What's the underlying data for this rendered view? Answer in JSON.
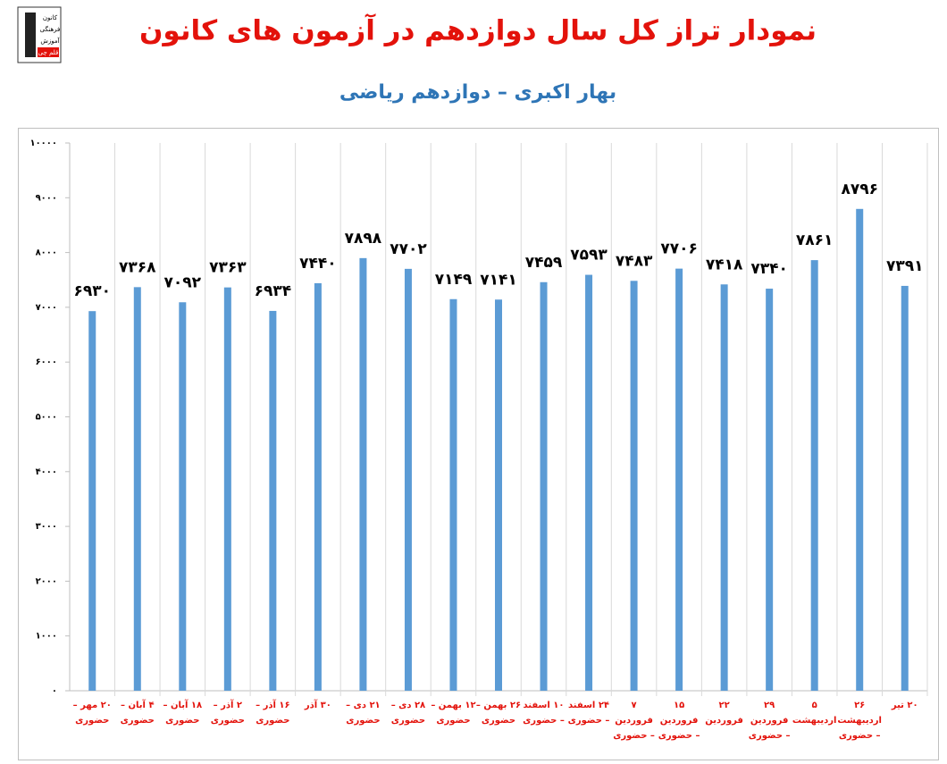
{
  "logo": {
    "lines": [
      "کانون",
      "فرهنگی",
      "آموزش",
      "قلم چی"
    ]
  },
  "chart_data": {
    "type": "bar",
    "title": "نمودار تراز کل سال دوازدهم در آزمون های کانون",
    "subtitle": "بهار اکبری – دوازدهم ریاضی",
    "categories": [
      "۲۰ مهر – حضوری",
      "۴ آبان – حضوری",
      "۱۸ آبان – حضوری",
      "۲ آذر – حضوری",
      "۱۶ آذر – حضوری",
      "۳۰ آذر",
      "۲۱ دی – حضوری",
      "۲۸ دی – حضوری",
      "۱۲ بهمن – حضوری",
      "۲۶ بهمن – حضوری",
      "۱۰ اسفند – حضوری",
      "۲۴ اسفند – حضوری",
      "۷ فروردین – حضوری",
      "۱۵ فروردین – حضوری",
      "۲۲ فروردین",
      "۲۹ فروردین – حضوری",
      "۵ اردیبهشت",
      "۲۶ اردیبهشت – حضوری",
      "۲۰ تیر"
    ],
    "values": [
      6930,
      7368,
      7092,
      7363,
      6934,
      7440,
      7898,
      7702,
      7149,
      7141,
      7459,
      7593,
      7483,
      7706,
      7418,
      7340,
      7861,
      8796,
      7391
    ],
    "value_labels": [
      "۶۹۳۰",
      "۷۳۶۸",
      "۷۰۹۲",
      "۷۳۶۳",
      "۶۹۳۴",
      "۷۴۴۰",
      "۷۸۹۸",
      "۷۷۰۲",
      "۷۱۴۹",
      "۷۱۴۱",
      "۷۴۵۹",
      "۷۵۹۳",
      "۷۴۸۳",
      "۷۷۰۶",
      "۷۴۱۸",
      "۷۳۴۰",
      "۷۸۶۱",
      "۸۷۹۶",
      "۷۳۹۱"
    ],
    "color": "#5b9bd5",
    "ylim": [
      0,
      10000
    ],
    "yticks": [
      {
        "value": 0,
        "label": "۰"
      },
      {
        "value": 1000,
        "label": "۱۰۰۰"
      },
      {
        "value": 2000,
        "label": "۲۰۰۰"
      },
      {
        "value": 3000,
        "label": "۳۰۰۰"
      },
      {
        "value": 4000,
        "label": "۴۰۰۰"
      },
      {
        "value": 5000,
        "label": "۵۰۰۰"
      },
      {
        "value": 6000,
        "label": "۶۰۰۰"
      },
      {
        "value": 7000,
        "label": "۷۰۰۰"
      },
      {
        "value": 8000,
        "label": "۸۰۰۰"
      },
      {
        "value": 9000,
        "label": "۹۰۰۰"
      },
      {
        "value": 10000,
        "label": "۱۰۰۰۰"
      }
    ]
  }
}
